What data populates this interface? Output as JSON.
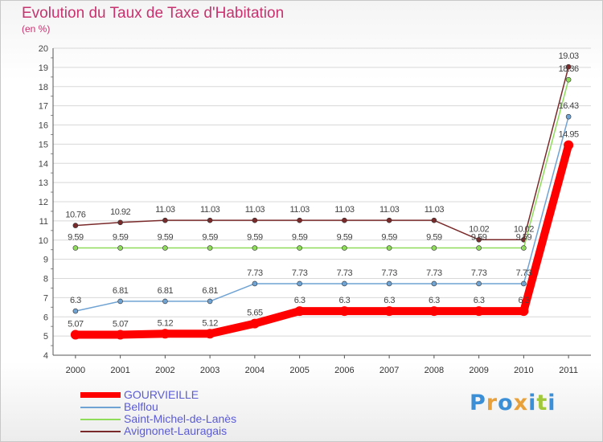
{
  "chart_data": {
    "type": "line",
    "title": "Evolution du Taux de Taxe d'Habitation",
    "subtitle": "(en %)",
    "xlabel": "",
    "ylabel": "",
    "categories": [
      "2000",
      "2001",
      "2002",
      "2003",
      "2004",
      "2005",
      "2006",
      "2007",
      "2008",
      "2009",
      "2010",
      "2011"
    ],
    "ylim": [
      4,
      20
    ],
    "yticks": [
      4,
      5,
      6,
      7,
      8,
      9,
      10,
      11,
      12,
      13,
      14,
      15,
      16,
      17,
      18,
      19,
      20
    ],
    "grid": true,
    "legend_position": "bottom-left",
    "series": [
      {
        "name": "GOURVIEILLE",
        "color": "#ff0000",
        "values": [
          5.07,
          5.07,
          5.12,
          5.12,
          5.65,
          6.3,
          6.3,
          6.3,
          6.3,
          6.3,
          6.3,
          14.95
        ],
        "labels": [
          "5.07",
          "5.07",
          "5.12",
          "5.12",
          "5.65",
          "6.3",
          "6.3",
          "6.3",
          "6.3",
          "6.3",
          "6.3",
          "14.95"
        ]
      },
      {
        "name": "Belflou",
        "color": "#6fa3d4",
        "values": [
          6.3,
          6.81,
          6.81,
          6.81,
          7.73,
          7.73,
          7.73,
          7.73,
          7.73,
          7.73,
          7.73,
          16.43
        ],
        "labels": [
          "6.3",
          "6.81",
          "6.81",
          "6.81",
          "7.73",
          "7.73",
          "7.73",
          "7.73",
          "7.73",
          "7.73",
          "7.73",
          "16.43"
        ]
      },
      {
        "name": "Saint-Michel-de-Lanès",
        "color": "#8edc5a",
        "values": [
          9.59,
          9.59,
          9.59,
          9.59,
          9.59,
          9.59,
          9.59,
          9.59,
          9.59,
          9.59,
          9.59,
          18.36
        ],
        "labels": [
          "9.59",
          "9.59",
          "9.59",
          "9.59",
          "9.59",
          "9.59",
          "9.59",
          "9.59",
          "9.59",
          "9.59",
          "9.59",
          "18.36"
        ]
      },
      {
        "name": "Avignonet-Lauragais",
        "color": "#7a2a2a",
        "values": [
          10.76,
          10.92,
          11.03,
          11.03,
          11.03,
          11.03,
          11.03,
          11.03,
          11.03,
          10.02,
          10.02,
          19.03
        ],
        "labels": [
          "10.76",
          "10.92",
          "11.03",
          "11.03",
          "11.03",
          "11.03",
          "11.03",
          "11.03",
          "11.03",
          "10.02",
          "10.02",
          "19.03"
        ]
      }
    ]
  },
  "legend": {
    "items": [
      {
        "label": "GOURVIEILLE",
        "color": "#ff0000"
      },
      {
        "label": "Belflou",
        "color": "#6fa3d4"
      },
      {
        "label": "Saint-Michel-de-Lanès",
        "color": "#8edc5a"
      },
      {
        "label": "Avignonet-Lauragais",
        "color": "#7a2a2a"
      }
    ]
  },
  "logo": {
    "letters": [
      "P",
      "r",
      "o",
      "x",
      "i",
      "t",
      "i"
    ],
    "colors": [
      "#3a8fd6",
      "#e8a13a",
      "#3a8fd6",
      "#e8a13a",
      "#3a8fd6",
      "#a0c83a",
      "#3a8fd6"
    ]
  }
}
